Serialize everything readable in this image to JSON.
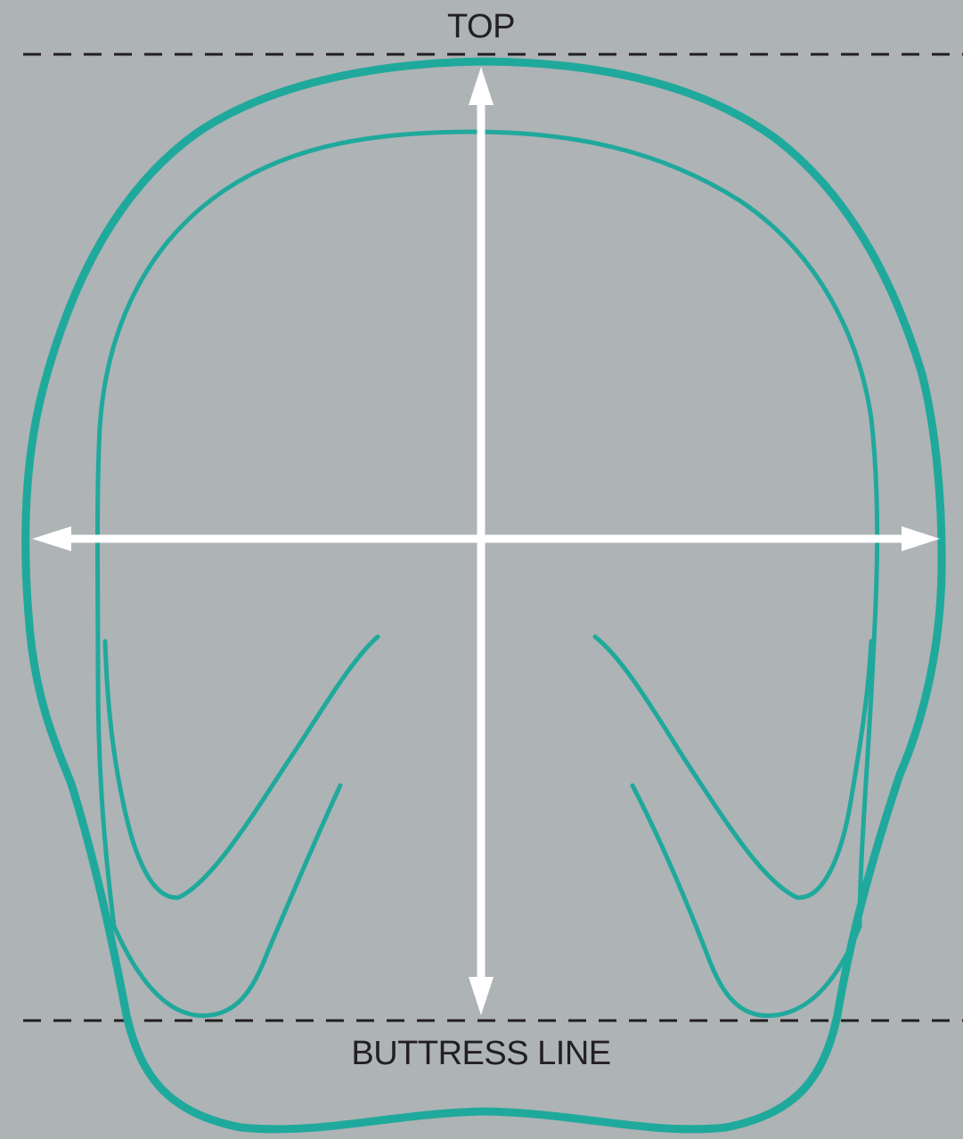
{
  "labels": {
    "top": "TOP",
    "buttress_line": "BUTTRESS LINE"
  },
  "colors": {
    "background": "#aeb3b5",
    "hoof_outline": "#1fa99c",
    "dashed_lines": "#231f20",
    "arrows": "#ffffff"
  }
}
